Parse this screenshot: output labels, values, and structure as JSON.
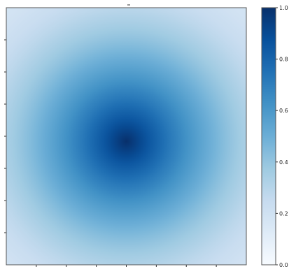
{
  "chart_data": {
    "type": "heatmap",
    "title": "",
    "xlabel": "",
    "ylabel": "",
    "colormap": "Blues",
    "value_range": [
      0.0,
      1.0
    ],
    "peak": {
      "value": 1.0,
      "x_fraction": 0.5,
      "y_fraction": 0.52
    },
    "edge_value": 0.18,
    "x_tick_labels": [
      "",
      "",
      "",
      "",
      "",
      "",
      ""
    ],
    "y_tick_labels": [
      "",
      "",
      "",
      "",
      "",
      "",
      ""
    ],
    "colorbar": {
      "ticks": [
        {
          "value": 0.0,
          "label": "0.0"
        },
        {
          "value": 0.2,
          "label": "0.2"
        },
        {
          "value": 0.4,
          "label": "0.4"
        },
        {
          "value": 0.6,
          "label": "0.6"
        },
        {
          "value": 0.8,
          "label": "0.8"
        },
        {
          "value": 1.0,
          "label": "1.0"
        }
      ]
    },
    "grid": false,
    "legend": "none"
  }
}
